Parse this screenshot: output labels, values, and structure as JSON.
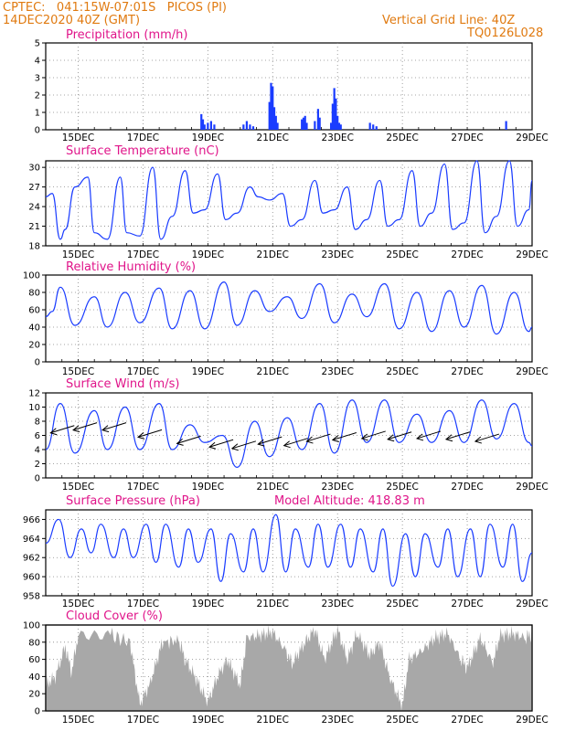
{
  "header": {
    "line1": "CPTEC:   041:15W-07:01S   PICOS (PI)",
    "line2": "14DEC2020 40Z (GMT)",
    "right1": "Vertical Grid Line: 40Z",
    "right2": "TQ0126L028"
  },
  "colors": {
    "header": "#e07a10",
    "title": "#e0158a",
    "line": "#1a3cff",
    "bar": "#1a3cff",
    "cloud": "#a8a8a8",
    "arrow": "#000000"
  },
  "x_tick_labels": [
    "15DEC",
    "17DEC",
    "19DEC",
    "21DEC",
    "23DEC",
    "25DEC",
    "27DEC",
    "29DEC"
  ],
  "chart_data": [
    {
      "type": "bar",
      "title": "Precipitation (mm/h)",
      "ylim": [
        0,
        5
      ],
      "yticks": [
        "0",
        "1",
        "2",
        "3",
        "4",
        "5"
      ],
      "xlim_days": [
        14,
        29.0
      ],
      "bars": [
        [
          18.8,
          0.9
        ],
        [
          18.85,
          0.6
        ],
        [
          18.9,
          0.3
        ],
        [
          19.0,
          0.4
        ],
        [
          19.1,
          0.5
        ],
        [
          19.2,
          0.3
        ],
        [
          20.1,
          0.3
        ],
        [
          20.2,
          0.5
        ],
        [
          20.3,
          0.3
        ],
        [
          20.4,
          0.2
        ],
        [
          20.9,
          1.6
        ],
        [
          20.95,
          2.7
        ],
        [
          21.0,
          2.5
        ],
        [
          21.05,
          1.3
        ],
        [
          21.1,
          0.8
        ],
        [
          21.15,
          0.4
        ],
        [
          21.9,
          0.6
        ],
        [
          21.95,
          0.7
        ],
        [
          22.0,
          0.8
        ],
        [
          22.05,
          0.4
        ],
        [
          22.3,
          0.5
        ],
        [
          22.4,
          1.2
        ],
        [
          22.45,
          0.7
        ],
        [
          22.8,
          0.4
        ],
        [
          22.85,
          1.5
        ],
        [
          22.9,
          2.4
        ],
        [
          22.95,
          1.8
        ],
        [
          23.0,
          0.8
        ],
        [
          23.05,
          0.4
        ],
        [
          23.1,
          0.3
        ],
        [
          24.0,
          0.4
        ],
        [
          24.1,
          0.3
        ],
        [
          24.2,
          0.2
        ],
        [
          28.2,
          0.5
        ]
      ]
    },
    {
      "type": "line",
      "title": "Surface Temperature (nC)",
      "ylim": [
        18,
        31
      ],
      "yticks": [
        "18",
        "21",
        "24",
        "27",
        "30"
      ],
      "series": [
        {
          "x": [
            14.0,
            14.2,
            14.45,
            14.6,
            14.9,
            15.3,
            15.5,
            15.9,
            16.3,
            16.5,
            16.9,
            17.3,
            17.55,
            17.9,
            18.3,
            18.55,
            18.9,
            19.3,
            19.55,
            19.9,
            20.3,
            20.55,
            20.9,
            21.3,
            21.55,
            21.9,
            22.3,
            22.55,
            22.9,
            23.3,
            23.55,
            23.9,
            24.3,
            24.55,
            24.9,
            25.3,
            25.55,
            25.9,
            26.3,
            26.55,
            26.9,
            27.3,
            27.55,
            27.9,
            28.3,
            28.55,
            28.9,
            29.0
          ],
          "y": [
            25.5,
            26,
            19,
            20.5,
            27,
            28.5,
            20,
            19,
            28.5,
            20,
            19.5,
            30,
            19,
            22.5,
            29.5,
            23,
            23.5,
            29,
            22,
            23,
            27,
            25.5,
            25,
            26,
            21,
            22,
            28,
            23,
            23.5,
            27,
            20.5,
            22,
            28,
            21,
            22,
            29.5,
            21,
            23,
            30.5,
            20.5,
            21.5,
            31,
            20,
            22.5,
            31,
            21,
            23.5,
            28
          ]
        }
      ]
    },
    {
      "type": "line",
      "title": "Relative Humidity (%)",
      "ylim": [
        0,
        100
      ],
      "yticks": [
        "0",
        "20",
        "40",
        "60",
        "80",
        "100"
      ],
      "series": [
        {
          "x": [
            14.0,
            14.2,
            14.45,
            14.9,
            15.5,
            15.9,
            16.45,
            16.9,
            17.5,
            17.9,
            18.45,
            18.9,
            19.5,
            19.9,
            20.45,
            20.9,
            21.45,
            21.9,
            22.45,
            22.9,
            23.45,
            23.9,
            24.45,
            24.9,
            25.45,
            25.9,
            26.45,
            26.9,
            27.45,
            27.9,
            28.45,
            28.9,
            29.0
          ],
          "y": [
            52,
            58,
            86,
            42,
            75,
            40,
            80,
            45,
            85,
            38,
            82,
            38,
            92,
            42,
            82,
            58,
            75,
            50,
            90,
            45,
            78,
            52,
            90,
            38,
            80,
            35,
            82,
            40,
            88,
            32,
            80,
            35,
            40
          ]
        }
      ]
    },
    {
      "type": "line",
      "title": "Surface Wind (m/s)",
      "ylim": [
        0,
        12
      ],
      "yticks": [
        "0",
        "2",
        "4",
        "6",
        "8",
        "10",
        "12"
      ],
      "series": [
        {
          "x": [
            14.0,
            14.45,
            14.9,
            15.5,
            15.9,
            16.45,
            16.9,
            17.5,
            17.9,
            18.45,
            18.9,
            19.45,
            19.9,
            20.45,
            20.9,
            21.45,
            21.9,
            22.45,
            22.9,
            23.45,
            23.9,
            24.45,
            24.9,
            25.45,
            25.9,
            26.45,
            26.9,
            27.45,
            27.9,
            28.45,
            28.9,
            29.0
          ],
          "y": [
            4,
            10.5,
            3.5,
            9.5,
            4,
            10,
            4,
            10.5,
            4,
            7.5,
            5,
            6,
            1.5,
            8,
            3,
            8.5,
            4,
            10.5,
            3.5,
            11,
            5,
            11,
            5,
            9,
            5,
            9.5,
            5,
            11,
            5.5,
            10.5,
            5,
            4.5
          ]
        }
      ],
      "arrows": [
        [
          14.6,
          7
        ],
        [
          15.3,
          7.4
        ],
        [
          16.2,
          7.4
        ],
        [
          17.3,
          6.4
        ],
        [
          18.5,
          5.5
        ],
        [
          19.5,
          5.0
        ],
        [
          20.2,
          4.8
        ],
        [
          21.0,
          5.4
        ],
        [
          21.8,
          5.2
        ],
        [
          22.5,
          5.8
        ],
        [
          23.3,
          6.0
        ],
        [
          24.2,
          6.2
        ],
        [
          25.0,
          6.1
        ],
        [
          25.9,
          6.2
        ],
        [
          26.8,
          6.1
        ],
        [
          27.7,
          5.8
        ]
      ]
    },
    {
      "type": "line",
      "title": "Surface Pressure (hPa)",
      "subtitle": "Model Altitude: 418.83 m",
      "ylim": [
        958,
        967
      ],
      "yticks": [
        "958",
        "960",
        "962",
        "964",
        "966"
      ],
      "series": [
        {
          "x": [
            14.0,
            14.4,
            14.75,
            15.1,
            15.4,
            15.7,
            16.1,
            16.4,
            16.7,
            17.1,
            17.4,
            17.7,
            18.1,
            18.4,
            18.7,
            19.1,
            19.4,
            19.7,
            20.1,
            20.4,
            20.7,
            21.1,
            21.4,
            21.7,
            22.1,
            22.4,
            22.7,
            23.1,
            23.4,
            23.7,
            24.1,
            24.4,
            24.7,
            25.1,
            25.4,
            25.7,
            26.1,
            26.4,
            26.7,
            27.1,
            27.4,
            27.7,
            28.1,
            28.4,
            28.7,
            29.0
          ],
          "y": [
            963.5,
            966,
            962,
            965,
            962.5,
            965.5,
            962,
            965,
            962,
            965.5,
            961.5,
            965.5,
            961,
            965,
            961.5,
            965,
            959.5,
            964.5,
            960.5,
            965,
            960.5,
            966.5,
            960.5,
            965,
            961,
            965.5,
            961,
            965.5,
            961,
            965,
            960.5,
            965,
            959,
            964.5,
            960,
            964.5,
            961,
            965,
            960,
            965,
            960,
            965.5,
            961,
            965.5,
            959.5,
            962.5
          ]
        }
      ]
    },
    {
      "type": "area",
      "title": "Cloud Cover (%)",
      "ylim": [
        0,
        100
      ],
      "yticks": [
        "0",
        "20",
        "40",
        "60",
        "80",
        "100"
      ],
      "series": [
        {
          "x": [
            14.0,
            14.3,
            14.6,
            14.8,
            15.0,
            16.0,
            16.6,
            16.9,
            17.2,
            17.6,
            18.1,
            18.3,
            18.6,
            19.0,
            19.3,
            19.6,
            20.0,
            20.2,
            20.6,
            21.0,
            21.4,
            21.6,
            22.0,
            22.3,
            22.6,
            23.0,
            23.3,
            23.6,
            24.0,
            24.3,
            24.6,
            25.0,
            25.2,
            25.6,
            26.0,
            26.4,
            26.8,
            27.0,
            27.4,
            27.8,
            28.0,
            28.4,
            28.8,
            29.0
          ],
          "y": [
            30,
            40,
            75,
            45,
            88,
            88,
            80,
            8,
            30,
            80,
            82,
            60,
            40,
            10,
            40,
            60,
            30,
            85,
            88,
            92,
            70,
            55,
            80,
            95,
            60,
            95,
            60,
            90,
            65,
            80,
            40,
            5,
            60,
            70,
            85,
            90,
            60,
            50,
            85,
            55,
            88,
            90,
            85,
            90
          ]
        }
      ]
    }
  ]
}
